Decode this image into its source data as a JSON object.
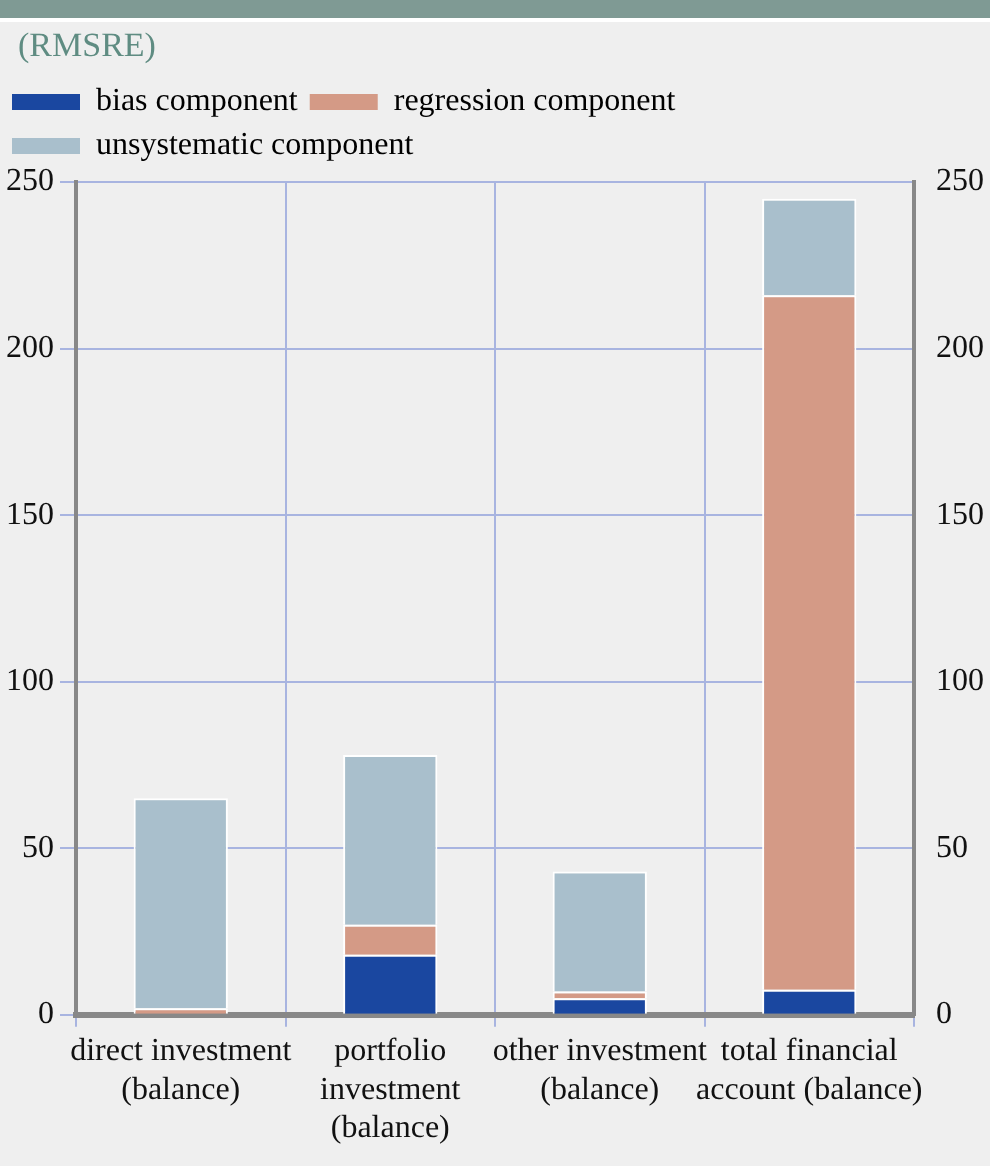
{
  "chart_data": {
    "type": "bar",
    "subtitle": "(RMSRE)",
    "stacked": true,
    "legend": "top left",
    "grid": true,
    "categories": [
      "direct investment (balance)",
      "portfolio investment (balance)",
      "other investment (balance)",
      "total financial account (balance)"
    ],
    "series": [
      {
        "name": "bias component",
        "color": "#1a47a0",
        "values": [
          0,
          18,
          5,
          7.5
        ]
      },
      {
        "name": "regression component",
        "color": "#d49a86",
        "values": [
          2,
          9,
          2,
          208.5
        ]
      },
      {
        "name": "unsystematic component",
        "color": "#a9bfcc",
        "values": [
          63,
          51,
          36,
          29
        ]
      }
    ],
    "ylim": [
      0,
      250
    ],
    "yticks": [
      0,
      50,
      100,
      150,
      200,
      250
    ],
    "y2lim": [
      0,
      250
    ],
    "y2ticks": [
      0,
      50,
      100,
      150,
      200,
      250
    ]
  }
}
